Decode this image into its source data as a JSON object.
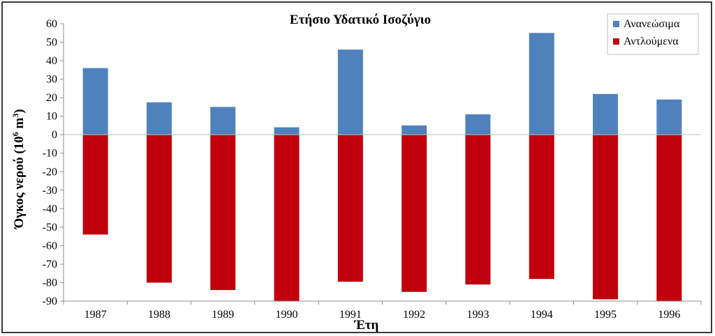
{
  "chart_data": {
    "type": "bar",
    "title": "Ετήσιο Υδατικό Ισοζύγιο",
    "xlabel": "Έτη",
    "ylabel_main": "Όγκος νερού (10",
    "ylabel_sup": "6",
    "ylabel_unit": " m",
    "ylabel_sup2": "3",
    "ylabel_close": ")",
    "ylim": [
      -90,
      60
    ],
    "yticks": [
      60,
      50,
      40,
      30,
      20,
      10,
      0,
      -10,
      -20,
      -30,
      -40,
      -50,
      -60,
      -70,
      -80,
      -90
    ],
    "categories": [
      "1987",
      "1988",
      "1989",
      "1990",
      "1991",
      "1992",
      "1993",
      "1994",
      "1995",
      "1996"
    ],
    "series": [
      {
        "name": "Ανανεώσιμα",
        "color": "#4f81bd",
        "values": [
          36,
          17.5,
          15,
          4,
          46,
          5,
          11,
          55,
          22,
          19
        ]
      },
      {
        "name": "Αντλούμενα",
        "color": "#c0000c",
        "values": [
          -54,
          -80,
          -84,
          -90,
          -79.5,
          -85,
          -81,
          -78,
          -89,
          -90
        ]
      }
    ],
    "legend_position": "top-right",
    "grid": false
  }
}
